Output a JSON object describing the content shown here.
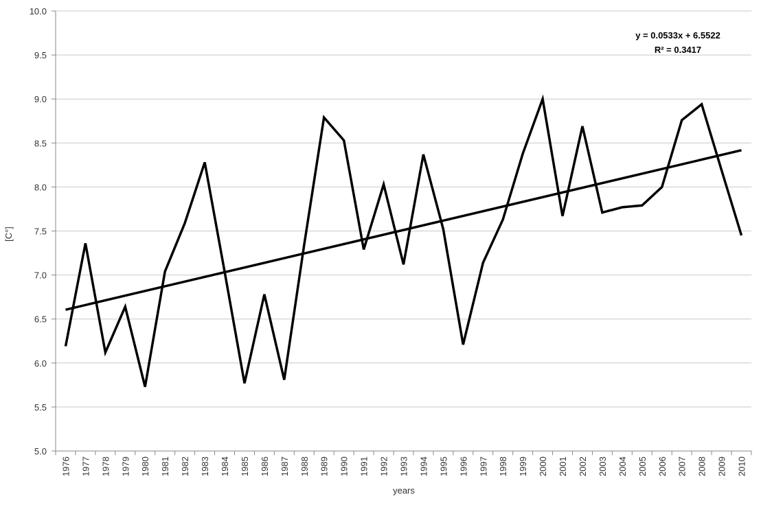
{
  "chart_data": {
    "type": "line",
    "title": "",
    "xlabel": "years",
    "ylabel": "[C°]",
    "ylim": [
      5.0,
      10.0
    ],
    "y_ticks": [
      "5.0",
      "5.5",
      "6.0",
      "6.5",
      "7.0",
      "7.5",
      "8.0",
      "8.5",
      "9.0",
      "9.5",
      "10.0"
    ],
    "grid": "horizontal",
    "categories": [
      "1976",
      "1977",
      "1978",
      "1979",
      "1980",
      "1981",
      "1982",
      "1983",
      "1984",
      "1985",
      "1986",
      "1987",
      "1988",
      "1989",
      "1990",
      "1991",
      "1992",
      "1993",
      "1994",
      "1995",
      "1996",
      "1997",
      "1998",
      "1999",
      "2000",
      "2001",
      "2002",
      "2003",
      "2004",
      "2005",
      "2006",
      "2007",
      "2008",
      "2009",
      "2010"
    ],
    "series": [
      {
        "values": [
          6.19,
          7.36,
          6.12,
          6.64,
          5.73,
          7.04,
          7.59,
          8.28,
          7.04,
          5.77,
          6.78,
          5.81,
          7.34,
          8.79,
          8.53,
          7.29,
          8.03,
          7.12,
          8.37,
          7.52,
          6.21,
          7.14,
          7.63,
          8.38,
          9.0,
          7.67,
          8.69,
          7.71,
          7.77,
          7.79,
          8.0,
          8.76,
          8.94,
          8.19,
          7.45
        ]
      }
    ],
    "trendline": {
      "type": "linear",
      "slope": 0.0533,
      "intercept": 6.5522,
      "equation": "y = 0.0533x + 6.5522",
      "r2_label": "R² = 0.3417"
    },
    "legend": "none",
    "colors": {
      "line": "#000000",
      "grid": "#c8c8c8",
      "axis": "#888888"
    }
  }
}
